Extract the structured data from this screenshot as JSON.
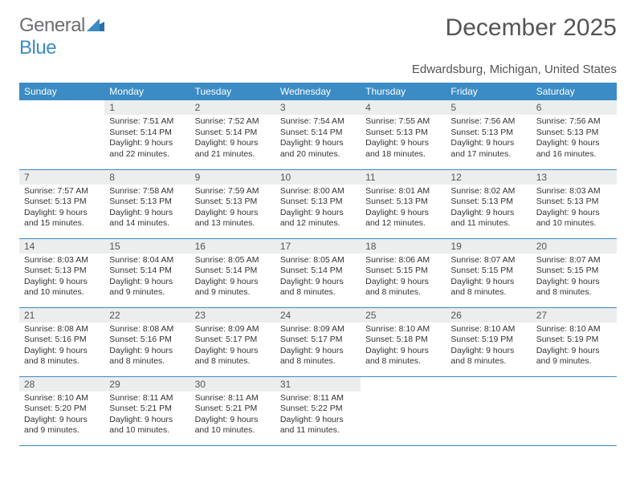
{
  "logo": {
    "word1": "General",
    "word2": "Blue"
  },
  "title": "December 2025",
  "location": "Edwardsburg, Michigan, United States",
  "colors": {
    "header_bg": "#3b8bc4",
    "header_text": "#ffffff",
    "daynum_bg": "#eceded",
    "text": "#333333",
    "page_bg": "#ffffff",
    "logo_gray": "#6d6e71",
    "logo_blue": "#3b8bc4"
  },
  "label_fontsize": 12,
  "cell_fontsize": 10.5,
  "columns": [
    "Sunday",
    "Monday",
    "Tuesday",
    "Wednesday",
    "Thursday",
    "Friday",
    "Saturday"
  ],
  "weeks": [
    [
      null,
      {
        "n": "1",
        "sr": "7:51 AM",
        "ss": "5:14 PM",
        "dl": "9 hours and 22 minutes."
      },
      {
        "n": "2",
        "sr": "7:52 AM",
        "ss": "5:14 PM",
        "dl": "9 hours and 21 minutes."
      },
      {
        "n": "3",
        "sr": "7:54 AM",
        "ss": "5:14 PM",
        "dl": "9 hours and 20 minutes."
      },
      {
        "n": "4",
        "sr": "7:55 AM",
        "ss": "5:13 PM",
        "dl": "9 hours and 18 minutes."
      },
      {
        "n": "5",
        "sr": "7:56 AM",
        "ss": "5:13 PM",
        "dl": "9 hours and 17 minutes."
      },
      {
        "n": "6",
        "sr": "7:56 AM",
        "ss": "5:13 PM",
        "dl": "9 hours and 16 minutes."
      }
    ],
    [
      {
        "n": "7",
        "sr": "7:57 AM",
        "ss": "5:13 PM",
        "dl": "9 hours and 15 minutes."
      },
      {
        "n": "8",
        "sr": "7:58 AM",
        "ss": "5:13 PM",
        "dl": "9 hours and 14 minutes."
      },
      {
        "n": "9",
        "sr": "7:59 AM",
        "ss": "5:13 PM",
        "dl": "9 hours and 13 minutes."
      },
      {
        "n": "10",
        "sr": "8:00 AM",
        "ss": "5:13 PM",
        "dl": "9 hours and 12 minutes."
      },
      {
        "n": "11",
        "sr": "8:01 AM",
        "ss": "5:13 PM",
        "dl": "9 hours and 12 minutes."
      },
      {
        "n": "12",
        "sr": "8:02 AM",
        "ss": "5:13 PM",
        "dl": "9 hours and 11 minutes."
      },
      {
        "n": "13",
        "sr": "8:03 AM",
        "ss": "5:13 PM",
        "dl": "9 hours and 10 minutes."
      }
    ],
    [
      {
        "n": "14",
        "sr": "8:03 AM",
        "ss": "5:13 PM",
        "dl": "9 hours and 10 minutes."
      },
      {
        "n": "15",
        "sr": "8:04 AM",
        "ss": "5:14 PM",
        "dl": "9 hours and 9 minutes."
      },
      {
        "n": "16",
        "sr": "8:05 AM",
        "ss": "5:14 PM",
        "dl": "9 hours and 9 minutes."
      },
      {
        "n": "17",
        "sr": "8:05 AM",
        "ss": "5:14 PM",
        "dl": "9 hours and 8 minutes."
      },
      {
        "n": "18",
        "sr": "8:06 AM",
        "ss": "5:15 PM",
        "dl": "9 hours and 8 minutes."
      },
      {
        "n": "19",
        "sr": "8:07 AM",
        "ss": "5:15 PM",
        "dl": "9 hours and 8 minutes."
      },
      {
        "n": "20",
        "sr": "8:07 AM",
        "ss": "5:15 PM",
        "dl": "9 hours and 8 minutes."
      }
    ],
    [
      {
        "n": "21",
        "sr": "8:08 AM",
        "ss": "5:16 PM",
        "dl": "9 hours and 8 minutes."
      },
      {
        "n": "22",
        "sr": "8:08 AM",
        "ss": "5:16 PM",
        "dl": "9 hours and 8 minutes."
      },
      {
        "n": "23",
        "sr": "8:09 AM",
        "ss": "5:17 PM",
        "dl": "9 hours and 8 minutes."
      },
      {
        "n": "24",
        "sr": "8:09 AM",
        "ss": "5:17 PM",
        "dl": "9 hours and 8 minutes."
      },
      {
        "n": "25",
        "sr": "8:10 AM",
        "ss": "5:18 PM",
        "dl": "9 hours and 8 minutes."
      },
      {
        "n": "26",
        "sr": "8:10 AM",
        "ss": "5:19 PM",
        "dl": "9 hours and 8 minutes."
      },
      {
        "n": "27",
        "sr": "8:10 AM",
        "ss": "5:19 PM",
        "dl": "9 hours and 9 minutes."
      }
    ],
    [
      {
        "n": "28",
        "sr": "8:10 AM",
        "ss": "5:20 PM",
        "dl": "9 hours and 9 minutes."
      },
      {
        "n": "29",
        "sr": "8:11 AM",
        "ss": "5:21 PM",
        "dl": "9 hours and 10 minutes."
      },
      {
        "n": "30",
        "sr": "8:11 AM",
        "ss": "5:21 PM",
        "dl": "9 hours and 10 minutes."
      },
      {
        "n": "31",
        "sr": "8:11 AM",
        "ss": "5:22 PM",
        "dl": "9 hours and 11 minutes."
      },
      null,
      null,
      null
    ]
  ],
  "labels": {
    "sunrise": "Sunrise:",
    "sunset": "Sunset:",
    "daylight": "Daylight:"
  }
}
